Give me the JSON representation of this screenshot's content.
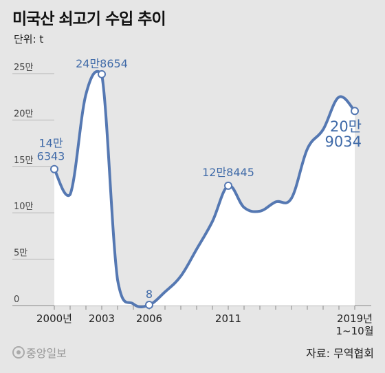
{
  "title": "미국산 쇠고기 수입 추이",
  "unit": "단위: t",
  "source": "자료: 무역협회",
  "logo_text": "중앙일보",
  "colors": {
    "line": "#5578b2",
    "label": "#3f6aa8",
    "area": "#ffffff",
    "background": "#e6e6e6"
  },
  "chart_data": {
    "type": "line",
    "x": [
      "2000",
      "2001",
      "2002",
      "2003",
      "2004",
      "2005",
      "2006",
      "2007",
      "2008",
      "2009",
      "2010",
      "2011",
      "2012",
      "2013",
      "2014",
      "2015",
      "2016",
      "2017",
      "2018",
      "2019 1~10월"
    ],
    "values": [
      146343,
      119000,
      227000,
      248654,
      27000,
      1000,
      8,
      14000,
      31000,
      60000,
      90000,
      128445,
      105000,
      101000,
      111000,
      115000,
      168000,
      189000,
      224000,
      209034
    ],
    "ylim": [
      0,
      250000
    ],
    "y_ticks": [
      {
        "value": 0,
        "label": "0"
      },
      {
        "value": 50000,
        "label": "5만"
      },
      {
        "value": 100000,
        "label": "10만"
      },
      {
        "value": 150000,
        "label": "15만"
      },
      {
        "value": 200000,
        "label": "20만"
      },
      {
        "value": 250000,
        "label": "25만"
      }
    ],
    "x_tick_labels": [
      {
        "index": 0,
        "lines": [
          "2000년"
        ]
      },
      {
        "index": 3,
        "lines": [
          "2003"
        ]
      },
      {
        "index": 6,
        "lines": [
          "2006"
        ]
      },
      {
        "index": 11,
        "lines": [
          "2011"
        ]
      },
      {
        "index": 19,
        "lines": [
          "2019년",
          "1~10월"
        ]
      }
    ],
    "annotations": [
      {
        "index": 0,
        "lines": [
          "14만",
          "6343"
        ],
        "style": "normal",
        "anchor": "middle",
        "dx": -5,
        "dy": -32
      },
      {
        "index": 3,
        "lines": [
          "24만8654"
        ],
        "style": "normal",
        "anchor": "middle",
        "dx": 0,
        "dy": -10
      },
      {
        "index": 6,
        "lines": [
          "8"
        ],
        "style": "normal",
        "anchor": "middle",
        "dx": 0,
        "dy": -10
      },
      {
        "index": 11,
        "lines": [
          "12만8445"
        ],
        "style": "normal",
        "anchor": "middle",
        "dx": 0,
        "dy": -14
      },
      {
        "index": 19,
        "lines": [
          "20만",
          "9034"
        ],
        "style": "big",
        "anchor": "end",
        "dx": 10,
        "dy": 30
      }
    ],
    "marker_indices": [
      0,
      3,
      6,
      11,
      19
    ],
    "grid": false
  }
}
